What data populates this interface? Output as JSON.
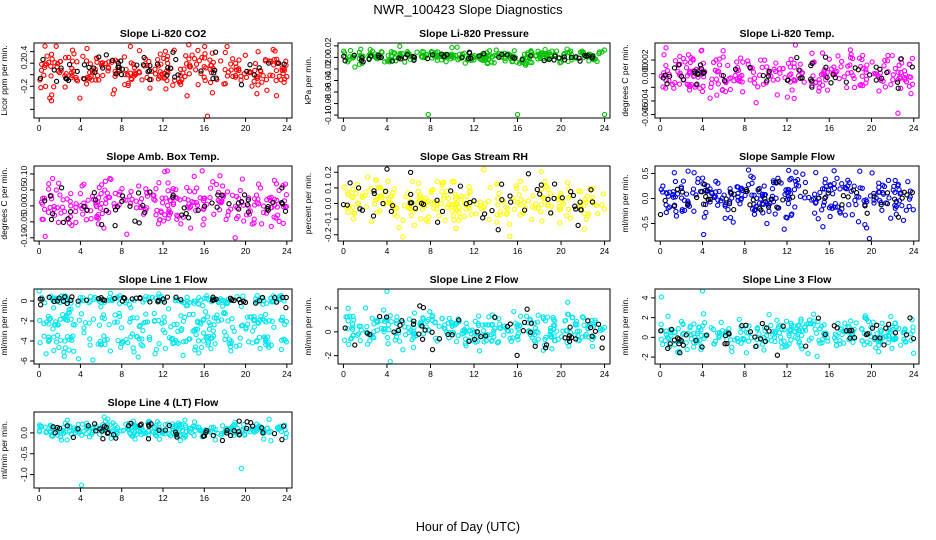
{
  "figure": {
    "title": "NWR_100423  Slope Diagnostics",
    "xlabel": "Hour of Day (UTC)"
  },
  "chart_data": [
    {
      "type": "scatter",
      "title": "Slope Li-820 CO2",
      "ylabel": "Licor ppm per min.",
      "xlim": [
        -0.5,
        24.5
      ],
      "ylim": [
        -0.75,
        0.55
      ],
      "xticks": [
        0,
        4,
        8,
        12,
        16,
        20,
        24
      ],
      "yticks": [
        -0.6,
        -0.4,
        -0.2,
        0.0,
        0.2,
        0.4
      ],
      "ytick_labels": [
        "",
        "",
        "-0.2",
        "",
        "0.2",
        "0.4"
      ],
      "grid": false,
      "series": [
        {
          "color": "#ff0000",
          "points": {
            "n": 260,
            "mean": 0.1,
            "sd": 0.2,
            "seed": 11
          },
          "outliers": [
            [
              14.5,
              0.52
            ],
            [
              16.3,
              -0.72
            ],
            [
              1.2,
              -0.45
            ]
          ]
        },
        {
          "color": "#000000",
          "points": {
            "n": 55,
            "mean": 0.1,
            "sd": 0.15,
            "seed": 12
          },
          "outliers": []
        }
      ]
    },
    {
      "type": "scatter",
      "title": "Slope Li-820 Pressure",
      "ylabel": "kPa per min.",
      "xlim": [
        -0.5,
        24.5
      ],
      "ylim": [
        -0.105,
        0.025
      ],
      "xticks": [
        0,
        4,
        8,
        12,
        16,
        20,
        24
      ],
      "yticks": [
        -0.1,
        -0.08,
        -0.06,
        -0.04,
        -0.02,
        0.0,
        0.02
      ],
      "ytick_labels": [
        "-0.10",
        "-0.08",
        "-0.06",
        "-0.04",
        "-0.02",
        "0.00",
        "0.02"
      ],
      "grid": false,
      "series": [
        {
          "color": "#00c000",
          "points": {
            "n": 260,
            "mean": 0.002,
            "sd": 0.006,
            "seed": 21
          },
          "outliers": [
            [
              7.8,
              -0.099
            ],
            [
              16.0,
              -0.099
            ],
            [
              24.0,
              -0.099
            ]
          ]
        },
        {
          "color": "#000000",
          "points": {
            "n": 55,
            "mean": 0.0,
            "sd": 0.004,
            "seed": 22
          },
          "outliers": []
        }
      ]
    },
    {
      "type": "scatter",
      "title": "Slope Li-820 Temp.",
      "ylabel": "degrees C per min.",
      "xlim": [
        -0.5,
        24.5
      ],
      "ylim": [
        -0.0065,
        0.0045
      ],
      "xticks": [
        0,
        4,
        8,
        12,
        16,
        20,
        24
      ],
      "yticks": [
        -0.006,
        -0.004,
        -0.002,
        0.0,
        0.002
      ],
      "ytick_labels": [
        "-0.006",
        "-0.004",
        "",
        "0.000",
        "0.002"
      ],
      "grid": false,
      "series": [
        {
          "color": "#ff00ff",
          "points": {
            "n": 260,
            "mean": 0.0,
            "sd": 0.0016,
            "seed": 31
          },
          "outliers": [
            [
              12.8,
              0.0042
            ],
            [
              22.5,
              -0.0058
            ]
          ]
        },
        {
          "color": "#000000",
          "points": {
            "n": 55,
            "mean": 0.0,
            "sd": 0.0012,
            "seed": 32
          },
          "outliers": []
        }
      ]
    },
    {
      "type": "scatter",
      "title": "Slope Amb. Box Temp.",
      "ylabel": "degrees C per min.",
      "xlim": [
        -0.5,
        24.5
      ],
      "ylim": [
        -0.11,
        0.125
      ],
      "xticks": [
        0,
        4,
        8,
        12,
        16,
        20,
        24
      ],
      "yticks": [
        -0.1,
        -0.05,
        0.0,
        0.05,
        0.1
      ],
      "ytick_labels": [
        "-0.10",
        "-0.05",
        "0.00",
        "0.05",
        "0.10"
      ],
      "grid": false,
      "series": [
        {
          "color": "#ff00ff",
          "points": {
            "n": 260,
            "mean": 0.005,
            "sd": 0.04,
            "seed": 41
          },
          "outliers": [
            [
              15.8,
              0.11
            ],
            [
              19.0,
              -0.1
            ]
          ]
        },
        {
          "color": "#000000",
          "points": {
            "n": 55,
            "mean": 0.0,
            "sd": 0.03,
            "seed": 42
          },
          "outliers": []
        }
      ]
    },
    {
      "type": "scatter",
      "title": "Slope Gas Stream RH",
      "ylabel": "percent per min.",
      "xlim": [
        -0.5,
        24.5
      ],
      "ylim": [
        -0.24,
        0.24
      ],
      "xticks": [
        0,
        4,
        8,
        12,
        16,
        20,
        24
      ],
      "yticks": [
        -0.2,
        -0.1,
        0.0,
        0.1,
        0.2
      ],
      "ytick_labels": [
        "-0.2",
        "-0.1",
        "0.0",
        "0.1",
        "0.2"
      ],
      "grid": false,
      "series": [
        {
          "color": "#ffff00",
          "points": {
            "n": 260,
            "mean": 0.01,
            "sd": 0.07,
            "seed": 51
          },
          "outliers": [
            [
              15.3,
              -0.21
            ]
          ]
        },
        {
          "color": "#000000",
          "points": {
            "n": 55,
            "mean": 0.01,
            "sd": 0.07,
            "seed": 52
          },
          "outliers": [
            [
              4.0,
              0.22
            ],
            [
              17.0,
              0.19
            ]
          ]
        }
      ]
    },
    {
      "type": "scatter",
      "title": "Slope Sample Flow",
      "ylabel": "ml/min per min.",
      "xlim": [
        -0.5,
        24.5
      ],
      "ylim": [
        -0.85,
        0.65
      ],
      "xticks": [
        0,
        4,
        8,
        12,
        16,
        20,
        24
      ],
      "yticks": [
        -0.5,
        0.0,
        0.5
      ],
      "ytick_labels": [
        "-0.5",
        "0.0",
        "0.5"
      ],
      "grid": false,
      "series": [
        {
          "color": "#0000e0",
          "points": {
            "n": 280,
            "mean": 0.05,
            "sd": 0.25,
            "seed": 61
          },
          "outliers": [
            [
              19.8,
              -0.8
            ],
            [
              4.1,
              -0.72
            ]
          ]
        },
        {
          "color": "#000000",
          "points": {
            "n": 55,
            "mean": 0.0,
            "sd": 0.15,
            "seed": 62
          },
          "outliers": []
        }
      ]
    },
    {
      "type": "scatter",
      "title": "Slope Line 1 Flow",
      "ylabel": "ml/min per min.",
      "xlim": [
        -0.5,
        24.5
      ],
      "ylim": [
        -6.3,
        1.2
      ],
      "xticks": [
        0,
        4,
        8,
        12,
        16,
        20,
        24
      ],
      "yticks": [
        -6,
        -4,
        -2,
        0
      ],
      "ytick_labels": [
        "-6",
        "-4",
        "-2",
        "0"
      ],
      "grid": false,
      "series": [
        {
          "color": "#00e5ee",
          "points": {
            "n": 130,
            "mean": 0.1,
            "sd": 0.3,
            "seed": 71
          },
          "outliers": [
            [
              0.0,
              1.0
            ]
          ]
        },
        {
          "color": "#00e5ee",
          "points": {
            "n": 130,
            "mean": -2.0,
            "sd": 0.5,
            "seed": 72
          },
          "outliers": []
        },
        {
          "color": "#00e5ee",
          "points": {
            "n": 130,
            "mean": -4.0,
            "sd": 0.6,
            "seed": 73
          },
          "outliers": [
            [
              5.2,
              -5.9
            ],
            [
              9.6,
              -5.6
            ]
          ]
        },
        {
          "color": "#000000",
          "points": {
            "n": 55,
            "mean": 0.1,
            "sd": 0.2,
            "seed": 74
          },
          "outliers": []
        }
      ]
    },
    {
      "type": "scatter",
      "title": "Slope Line 2 Flow",
      "ylabel": "ml/min per min.",
      "xlim": [
        -0.5,
        24.5
      ],
      "ylim": [
        -2.7,
        3.6
      ],
      "xticks": [
        0,
        4,
        8,
        12,
        16,
        20,
        24
      ],
      "yticks": [
        -2,
        0,
        2
      ],
      "ytick_labels": [
        "-2",
        "0",
        "2"
      ],
      "grid": false,
      "series": [
        {
          "color": "#00e5ee",
          "points": {
            "n": 300,
            "mean": 0.2,
            "sd": 0.75,
            "seed": 81
          },
          "outliers": [
            [
              4.0,
              3.4
            ],
            [
              4.3,
              -2.5
            ]
          ]
        },
        {
          "color": "#000000",
          "points": {
            "n": 55,
            "mean": 0.0,
            "sd": 0.8,
            "seed": 82
          },
          "outliers": []
        }
      ]
    },
    {
      "type": "scatter",
      "title": "Slope Line 3 Flow",
      "ylabel": "ml/min per min.",
      "xlim": [
        -0.5,
        24.5
      ],
      "ylim": [
        -2.7,
        4.9
      ],
      "xticks": [
        0,
        4,
        8,
        12,
        16,
        20,
        24
      ],
      "yticks": [
        -2,
        0,
        2,
        4
      ],
      "ytick_labels": [
        "-2",
        "0",
        "2",
        "4"
      ],
      "grid": false,
      "series": [
        {
          "color": "#00e5ee",
          "points": {
            "n": 300,
            "mean": 0.2,
            "sd": 0.85,
            "seed": 91
          },
          "outliers": [
            [
              0.1,
              4.1
            ],
            [
              4.0,
              4.7
            ]
          ]
        },
        {
          "color": "#000000",
          "points": {
            "n": 55,
            "mean": 0.0,
            "sd": 0.9,
            "seed": 92
          },
          "outliers": []
        }
      ]
    },
    {
      "type": "scatter",
      "title": "Slope Line 4 (LT) Flow",
      "ylabel": "ml/min per min.",
      "xlim": [
        -0.5,
        24.5
      ],
      "ylim": [
        -1.32,
        0.5
      ],
      "xticks": [
        0,
        4,
        8,
        12,
        16,
        20,
        24
      ],
      "yticks": [
        -1.0,
        -0.5,
        0.0
      ],
      "ytick_labels": [
        "-1.0",
        "-0.5",
        "0.0"
      ],
      "grid": false,
      "series": [
        {
          "color": "#00e5ee",
          "points": {
            "n": 280,
            "mean": 0.07,
            "sd": 0.1,
            "seed": 101
          },
          "outliers": [
            [
              4.1,
              -1.25
            ],
            [
              19.6,
              -0.85
            ],
            [
              6.3,
              0.38
            ]
          ]
        },
        {
          "color": "#000000",
          "points": {
            "n": 55,
            "mean": 0.05,
            "sd": 0.1,
            "seed": 102
          },
          "outliers": []
        }
      ]
    }
  ]
}
